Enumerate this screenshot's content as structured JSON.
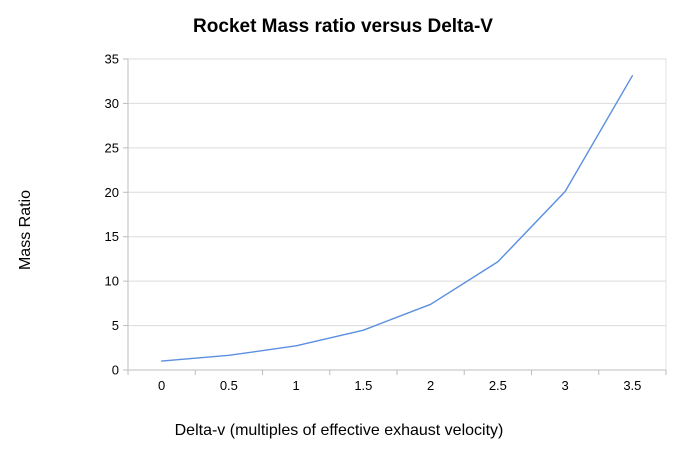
{
  "chart_data": {
    "type": "line",
    "title": "Rocket Mass ratio versus Delta-V",
    "xlabel": "Delta-v (multiples of effective exhaust velocity)",
    "ylabel": "Mass Ratio",
    "categories": [
      "0",
      "0.5",
      "1",
      "1.5",
      "2",
      "2.5",
      "3",
      "3.5"
    ],
    "x": [
      0,
      0.5,
      1,
      1.5,
      2,
      2.5,
      3,
      3.5
    ],
    "series": [
      {
        "values": [
          1,
          1.65,
          2.72,
          4.48,
          7.39,
          12.18,
          20.09,
          33.12
        ]
      }
    ],
    "ylim": [
      0,
      35
    ],
    "yticks": [
      0,
      5,
      10,
      15,
      20,
      25,
      30,
      35
    ],
    "grid": true,
    "legend": "none",
    "series_colors": [
      "#5b8fe0"
    ]
  }
}
